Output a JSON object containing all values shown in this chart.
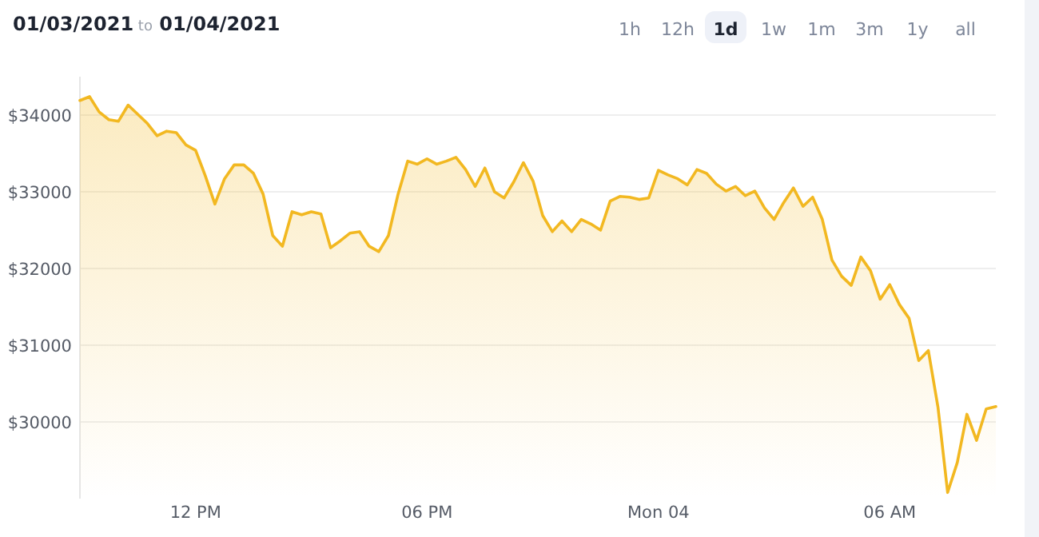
{
  "chart_data": {
    "type": "area",
    "title": "01/03/2021 to 01/04/2021",
    "annotations": [
      "1h",
      "12h",
      "1d",
      "1w",
      "1m",
      "3m",
      "1y",
      "all"
    ],
    "x": [
      "2021-01-03T09:00",
      "2021-01-03T09:15",
      "2021-01-03T09:30",
      "2021-01-03T09:45",
      "2021-01-03T10:00",
      "2021-01-03T10:15",
      "2021-01-03T10:30",
      "2021-01-03T10:45",
      "2021-01-03T11:00",
      "2021-01-03T11:15",
      "2021-01-03T11:30",
      "2021-01-03T11:45",
      "2021-01-03T12:00",
      "2021-01-03T12:15",
      "2021-01-03T12:30",
      "2021-01-03T12:45",
      "2021-01-03T13:00",
      "2021-01-03T13:15",
      "2021-01-03T13:30",
      "2021-01-03T13:45",
      "2021-01-03T14:00",
      "2021-01-03T14:15",
      "2021-01-03T14:30",
      "2021-01-03T14:45",
      "2021-01-03T15:00",
      "2021-01-03T15:15",
      "2021-01-03T15:30",
      "2021-01-03T15:45",
      "2021-01-03T16:00",
      "2021-01-03T16:15",
      "2021-01-03T16:30",
      "2021-01-03T16:45",
      "2021-01-03T17:00",
      "2021-01-03T17:15",
      "2021-01-03T17:30",
      "2021-01-03T17:45",
      "2021-01-03T18:00",
      "2021-01-03T18:15",
      "2021-01-03T18:30",
      "2021-01-03T18:45",
      "2021-01-03T19:00",
      "2021-01-03T19:15",
      "2021-01-03T19:30",
      "2021-01-03T19:45",
      "2021-01-03T20:00",
      "2021-01-03T20:15",
      "2021-01-03T20:30",
      "2021-01-03T20:45",
      "2021-01-03T21:00",
      "2021-01-03T21:15",
      "2021-01-03T21:30",
      "2021-01-03T21:45",
      "2021-01-03T22:00",
      "2021-01-03T22:15",
      "2021-01-03T22:30",
      "2021-01-03T22:45",
      "2021-01-03T23:00",
      "2021-01-03T23:15",
      "2021-01-03T23:30",
      "2021-01-03T23:45",
      "2021-01-04T00:00",
      "2021-01-04T00:15",
      "2021-01-04T00:30",
      "2021-01-04T00:45",
      "2021-01-04T01:00",
      "2021-01-04T01:15",
      "2021-01-04T01:30",
      "2021-01-04T01:45",
      "2021-01-04T02:00",
      "2021-01-04T02:15",
      "2021-01-04T02:30",
      "2021-01-04T02:45",
      "2021-01-04T03:00",
      "2021-01-04T03:15",
      "2021-01-04T03:30",
      "2021-01-04T03:45",
      "2021-01-04T04:00",
      "2021-01-04T04:15",
      "2021-01-04T04:30",
      "2021-01-04T04:45",
      "2021-01-04T05:00",
      "2021-01-04T05:15",
      "2021-01-04T05:30",
      "2021-01-04T05:45",
      "2021-01-04T06:00",
      "2021-01-04T06:15",
      "2021-01-04T06:30",
      "2021-01-04T06:45",
      "2021-01-04T07:00",
      "2021-01-04T07:15",
      "2021-01-04T07:30",
      "2021-01-04T07:45",
      "2021-01-04T08:00",
      "2021-01-04T08:15",
      "2021-01-04T08:30",
      "2021-01-04T08:45"
    ],
    "series": [
      {
        "color": "#f2b821",
        "values": [
          34190,
          34240,
          34040,
          33940,
          33920,
          34130,
          34010,
          33890,
          33730,
          33790,
          33770,
          33610,
          33540,
          33210,
          32840,
          33170,
          33350,
          33350,
          33240,
          32970,
          32430,
          32290,
          32740,
          32700,
          32740,
          32710,
          32270,
          32360,
          32460,
          32480,
          32290,
          32220,
          32430,
          32970,
          33400,
          33360,
          33430,
          33360,
          33400,
          33450,
          33290,
          33070,
          33310,
          33000,
          32920,
          33130,
          33380,
          33140,
          32690,
          32480,
          32620,
          32480,
          32640,
          32580,
          32500,
          32880,
          32940,
          32930,
          32900,
          32920,
          33280,
          33220,
          33170,
          33090,
          33290,
          33240,
          33100,
          33010,
          33070,
          32950,
          33010,
          32790,
          32640,
          32860,
          33050,
          32810,
          32930,
          32640,
          32110,
          31900,
          31780,
          32150,
          31970,
          31600,
          31790,
          31530,
          31350,
          30800,
          30930,
          30190,
          29080,
          29470,
          30100,
          29760,
          30170,
          30200
        ]
      }
    ],
    "xlim": [
      "2021-01-03T09:00",
      "2021-01-04T08:45"
    ],
    "xticks": [
      {
        "value": "2021-01-03T12:00",
        "label": "12 PM"
      },
      {
        "value": "2021-01-03T18:00",
        "label": "06 PM"
      },
      {
        "value": "2021-01-04T00:00",
        "label": "Mon 04"
      },
      {
        "value": "2021-01-04T06:00",
        "label": "06 AM"
      }
    ],
    "ylim": [
      29000,
      34500
    ],
    "yticks": [
      {
        "value": 30000,
        "label": "$30000"
      },
      {
        "value": 31000,
        "label": "$31000"
      },
      {
        "value": 32000,
        "label": "$32000"
      },
      {
        "value": 33000,
        "label": "$33000"
      },
      {
        "value": 34000,
        "label": "$34000"
      }
    ],
    "grid": "y"
  }
}
